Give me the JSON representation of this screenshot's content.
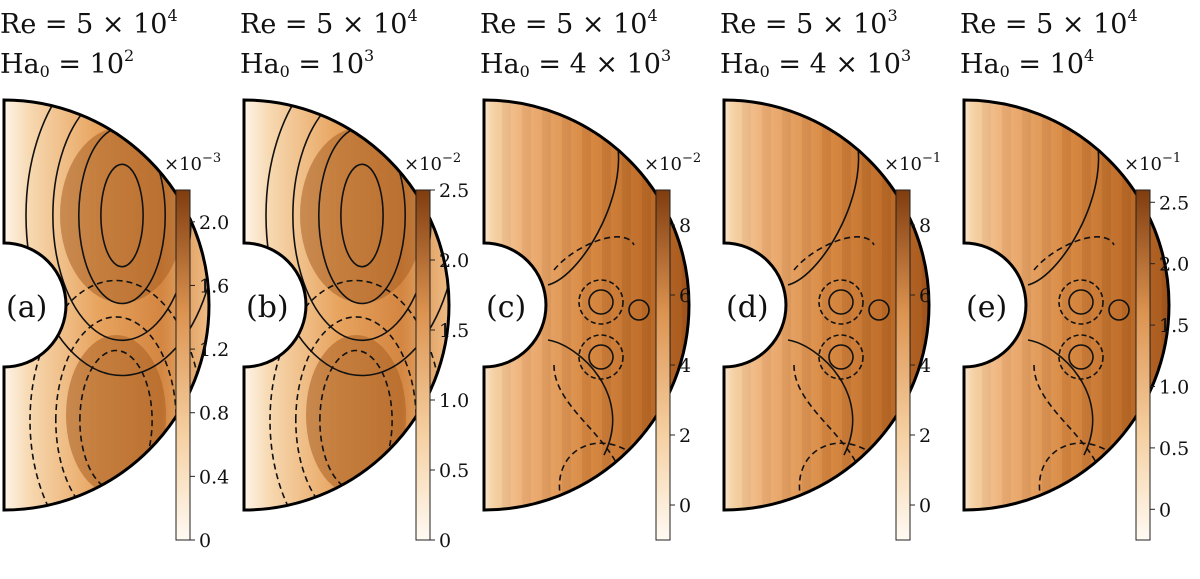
{
  "chart_data": [
    {
      "type": "heatmap",
      "panel_label": "(a)",
      "re_text": "5 × 10",
      "re_exp": "4",
      "ha_text": "10",
      "ha_exp": "2",
      "colorbar": {
        "multiplier_base": "×10",
        "multiplier_exp": "−3",
        "ticks": [
          "0",
          "0.4",
          "0.8",
          "1.2",
          "1.6",
          "2.0"
        ],
        "tick_values": [
          0,
          0.4,
          0.8,
          1.2,
          1.6,
          2.0
        ],
        "range": [
          0,
          2.2
        ]
      },
      "pattern": "smooth"
    },
    {
      "type": "heatmap",
      "panel_label": "(b)",
      "re_text": "5 × 10",
      "re_exp": "4",
      "ha_text": "10",
      "ha_exp": "3",
      "colorbar": {
        "multiplier_base": "×10",
        "multiplier_exp": "−2",
        "ticks": [
          "0",
          "0.5",
          "1.0",
          "1.5",
          "2.0",
          "2.5"
        ],
        "tick_values": [
          0,
          0.5,
          1.0,
          1.5,
          2.0,
          2.5
        ],
        "range": [
          0,
          2.5
        ]
      },
      "pattern": "smooth"
    },
    {
      "type": "heatmap",
      "panel_label": "(c)",
      "re_text": "5 × 10",
      "re_exp": "4",
      "ha_text": "4 × 10",
      "ha_exp": "3",
      "colorbar": {
        "multiplier_base": "×10",
        "multiplier_exp": "−2",
        "ticks": [
          "0",
          "2",
          "4",
          "6",
          "8"
        ],
        "tick_values": [
          0,
          2,
          4,
          6,
          8
        ],
        "range": [
          -1,
          9
        ]
      },
      "pattern": "banded"
    },
    {
      "type": "heatmap",
      "panel_label": "(d)",
      "re_text": "5 × 10",
      "re_exp": "3",
      "ha_text": "4 × 10",
      "ha_exp": "3",
      "colorbar": {
        "multiplier_base": "×10",
        "multiplier_exp": "−1",
        "ticks": [
          "0",
          "2",
          "4",
          "6",
          "8"
        ],
        "tick_values": [
          0,
          2,
          4,
          6,
          8
        ],
        "range": [
          -1,
          9
        ]
      },
      "pattern": "banded"
    },
    {
      "type": "heatmap",
      "panel_label": "(e)",
      "re_text": "5 × 10",
      "re_exp": "4",
      "ha_text": "10",
      "ha_exp": "4",
      "colorbar": {
        "multiplier_base": "×10",
        "multiplier_exp": "−1",
        "ticks": [
          "0",
          "0.5",
          "1.0",
          "1.5",
          "2.0",
          "2.5"
        ],
        "tick_values": [
          0,
          0.5,
          1.0,
          1.5,
          2.0,
          2.5
        ],
        "range": [
          -0.25,
          2.6
        ]
      },
      "pattern": "banded"
    }
  ],
  "labels": {
    "re": "Re",
    "ha": "Ha",
    "ha_sub": "0",
    "eq": " = "
  },
  "colors": {
    "low": "#fdf4e6",
    "mid": "#e6a15a",
    "high": "#8a4512",
    "contour": "#111111"
  }
}
